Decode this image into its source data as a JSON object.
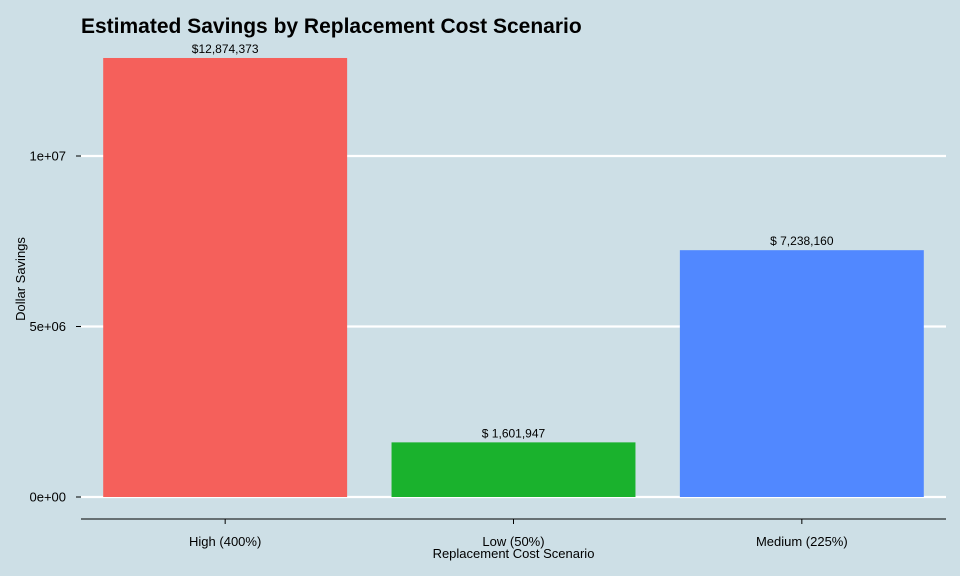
{
  "chart_data": {
    "type": "bar",
    "title": "Estimated Savings by Replacement Cost Scenario",
    "xlabel": "Replacement Cost Scenario",
    "ylabel": "Dollar Savings",
    "categories": [
      "High (400%)",
      "Low (50%)",
      "Medium (225%)"
    ],
    "values": [
      12874373,
      1601947,
      7238160
    ],
    "data_labels": [
      "$12,874,373",
      "$ 1,601,947",
      "$ 7,238,160"
    ],
    "colors": [
      "#f5605b",
      "#1ab22d",
      "#5188ff"
    ],
    "y_ticks": [
      0,
      5000000,
      10000000
    ],
    "y_tick_labels": [
      "0e+00",
      "5e+06",
      "1e+07"
    ],
    "ylim": [
      0,
      13500000
    ],
    "grid": "horizontal-major",
    "legend": "none",
    "background": "#cddfe6"
  }
}
